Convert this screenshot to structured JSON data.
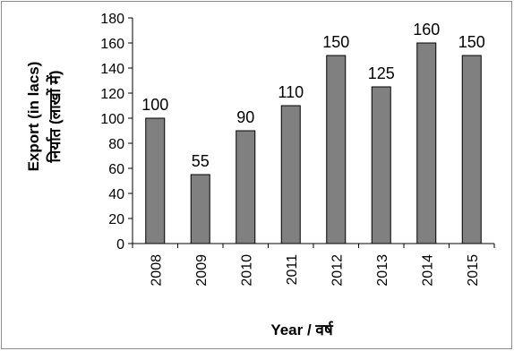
{
  "chart_data": {
    "type": "bar",
    "categories": [
      "2008",
      "2009",
      "2010",
      "2011",
      "2012",
      "2013",
      "2014",
      "2015"
    ],
    "values": [
      100,
      55,
      90,
      110,
      150,
      125,
      160,
      150
    ],
    "data_labels": [
      "100",
      "55",
      "90",
      "110",
      "150",
      "125",
      "160",
      "150"
    ],
    "title": "",
    "xlabel": "Year / वर्ष",
    "ylabel_line1": "Export (in lacs)",
    "ylabel_line2": "निर्यात (लाखों में)",
    "ylim": [
      0,
      180
    ],
    "yticks": [
      0,
      20,
      40,
      60,
      80,
      100,
      120,
      140,
      160,
      180
    ],
    "grid": false,
    "legend": "none",
    "bar_color": "#808080",
    "bar_edge_color": "#000000"
  }
}
